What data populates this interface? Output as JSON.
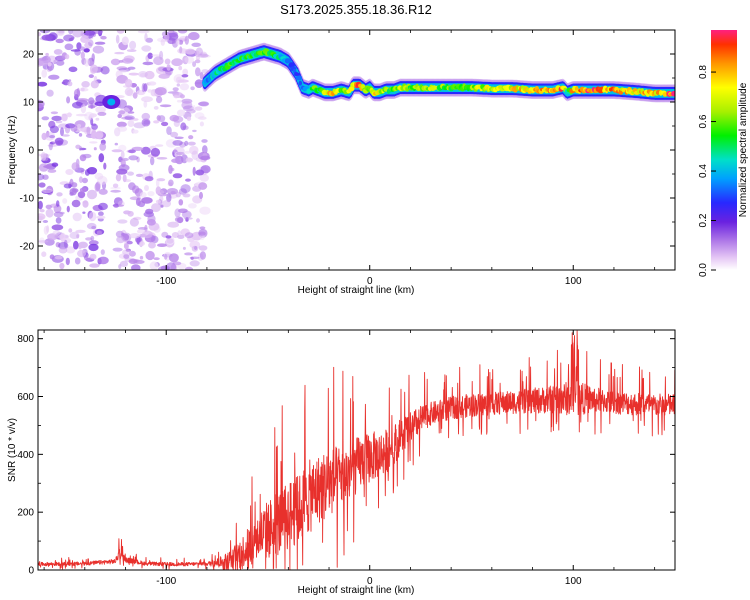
{
  "title": "S173.2025.355.18.36.R12",
  "chart_data": [
    {
      "type": "heatmap",
      "xlabel": "Height of straight line (km)",
      "ylabel": "Frequency (Hz)",
      "xlim": [
        -163,
        150
      ],
      "ylim": [
        -25,
        25
      ],
      "xticks": [
        -100,
        0,
        100
      ],
      "yticks": [
        -20,
        -10,
        0,
        10,
        20
      ],
      "colorbar": {
        "label": "Normalized spectral amplitude",
        "range": [
          0,
          0.97
        ],
        "ticks": [
          0.0,
          0.2,
          0.4,
          0.6,
          0.8
        ],
        "tick_labels": [
          "0.0",
          "0.2",
          "0.4",
          "0.6",
          "0.8"
        ]
      },
      "noise_regions": [
        {
          "x_from": -163,
          "x_to": -130,
          "amplitude": 0.1
        },
        {
          "x_from": -125,
          "x_to": -80,
          "amplitude": 0.08
        }
      ],
      "hot_spot": {
        "x": -127,
        "y": 10,
        "amplitude": 0.25
      },
      "ridge": {
        "x": [
          -81,
          -76,
          -72,
          -68,
          -64,
          -60,
          -56,
          -52,
          -48,
          -44,
          -40,
          -36,
          -33,
          -30,
          -28,
          -25,
          -22,
          -18,
          -14,
          -10,
          -8,
          -5,
          -2,
          0,
          2,
          5,
          8,
          12,
          15,
          20,
          30,
          40,
          50,
          60,
          70,
          80,
          90,
          95,
          97,
          100,
          110,
          120,
          130,
          140,
          150
        ],
        "y": [
          14,
          16,
          17,
          18,
          19,
          19.5,
          20,
          20.5,
          20,
          19.5,
          18.5,
          16,
          13,
          12.5,
          13,
          12.5,
          12,
          12,
          12.5,
          12,
          13.5,
          13.5,
          12.5,
          13,
          12,
          12,
          12.5,
          12.5,
          13,
          13,
          13,
          13,
          13,
          12.8,
          12.8,
          12.5,
          12.5,
          13,
          12,
          12.5,
          12.5,
          12.5,
          12.2,
          11.8,
          11.8
        ],
        "amplitude": [
          0.35,
          0.45,
          0.5,
          0.55,
          0.5,
          0.55,
          0.5,
          0.6,
          0.55,
          0.45,
          0.35,
          0.3,
          0.35,
          0.4,
          0.6,
          0.55,
          0.7,
          0.8,
          0.65,
          0.75,
          0.85,
          0.9,
          0.65,
          0.7,
          0.8,
          0.7,
          0.6,
          0.6,
          0.65,
          0.6,
          0.65,
          0.6,
          0.65,
          0.7,
          0.75,
          0.8,
          0.85,
          0.85,
          0.4,
          0.85,
          0.9,
          0.85,
          0.75,
          0.8,
          0.95
        ]
      }
    },
    {
      "type": "line",
      "xlabel": "Height of straight line (km)",
      "ylabel": "SNR (10 * v/v)",
      "xlim": [
        -163,
        150
      ],
      "ylim": [
        0,
        830
      ],
      "xticks": [
        -100,
        0,
        100
      ],
      "yticks": [
        0,
        200,
        400,
        600,
        800
      ],
      "series": [
        {
          "name": "SNR",
          "color": "#e8302c",
          "x": [
            -163,
            -140,
            -125,
            -123,
            -120,
            -110,
            -100,
            -90,
            -80,
            -75,
            -70,
            -65,
            -60,
            -55,
            -50,
            -45,
            -40,
            -35,
            -30,
            -25,
            -20,
            -15,
            -10,
            -5,
            0,
            5,
            10,
            15,
            20,
            25,
            30,
            40,
            50,
            60,
            70,
            80,
            90,
            100,
            110,
            120,
            130,
            140,
            150
          ],
          "y": [
            20,
            22,
            30,
            60,
            35,
            22,
            20,
            20,
            22,
            25,
            30,
            50,
            80,
            110,
            140,
            160,
            190,
            210,
            250,
            280,
            300,
            320,
            340,
            370,
            390,
            400,
            420,
            460,
            490,
            520,
            540,
            560,
            570,
            575,
            580,
            585,
            590,
            595,
            590,
            580,
            575,
            570,
            570
          ],
          "noise_amplitude": [
            8,
            8,
            10,
            25,
            12,
            8,
            8,
            8,
            8,
            20,
            40,
            60,
            80,
            110,
            130,
            140,
            150,
            150,
            160,
            150,
            150,
            140,
            130,
            120,
            110,
            100,
            90,
            80,
            70,
            60,
            50,
            50,
            50,
            50,
            50,
            55,
            60,
            80,
            55,
            50,
            50,
            50,
            50
          ]
        }
      ]
    }
  ]
}
